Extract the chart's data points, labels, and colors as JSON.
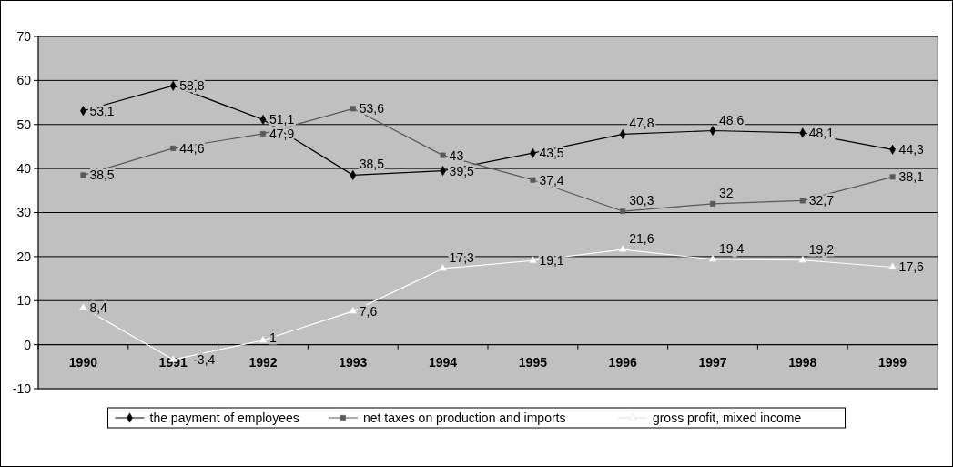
{
  "chart_data": {
    "type": "line",
    "categories": [
      "1990",
      "1991",
      "1992",
      "1993",
      "1994",
      "1995",
      "1996",
      "1997",
      "1998",
      "1999"
    ],
    "series": [
      {
        "name": "the payment of employees",
        "color": "#000000",
        "marker": "diamond",
        "values": [
          53.1,
          58.8,
          51.1,
          38.5,
          39.5,
          43.5,
          47.8,
          48.6,
          48.1,
          44.3
        ],
        "value_labels": [
          "53,1",
          "58,8",
          "51,1",
          "38,5",
          "39,5",
          "43,5",
          "47,8",
          "48,6",
          "48,1",
          "44,3"
        ]
      },
      {
        "name": "net taxes on production and imports",
        "color": "#595959",
        "marker": "square",
        "values": [
          38.5,
          44.6,
          47.9,
          53.6,
          43,
          37.4,
          30.3,
          32,
          32.7,
          38.1
        ],
        "value_labels": [
          "38,5",
          "44,6",
          "47,9",
          "53,6",
          "43",
          "37,4",
          "30,3",
          "32",
          "32,7",
          "38,1"
        ]
      },
      {
        "name": "gross profit, mixed income",
        "color": "#ffffff",
        "marker": "triangle",
        "values": [
          8.4,
          -3.4,
          1,
          7.6,
          17.3,
          19.1,
          21.6,
          19.4,
          19.2,
          17.6
        ],
        "value_labels": [
          "8,4",
          "-3,4",
          "1",
          "7,6",
          "17,3",
          "19,1",
          "21,6",
          "19,4",
          "19,2",
          "17,6"
        ]
      }
    ],
    "ylim": [
      -10,
      70
    ],
    "yticks": [
      -10,
      0,
      10,
      20,
      30,
      40,
      50,
      60,
      70
    ],
    "grid": "y",
    "legend": "bottom",
    "line_style": "solid"
  }
}
